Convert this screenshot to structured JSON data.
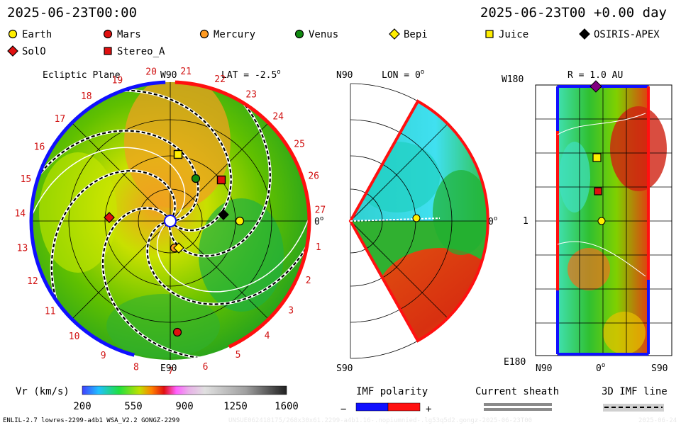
{
  "header": {
    "datetime_left": "2025-06-23T00:00",
    "datetime_right": "2025-06-23T00 +0.00 day"
  },
  "legend": [
    {
      "name": "Earth",
      "shape": "circle",
      "color": "#ffee00"
    },
    {
      "name": "Mars",
      "shape": "circle",
      "color": "#e01010"
    },
    {
      "name": "Mercury",
      "shape": "circle",
      "color": "#ff9a20"
    },
    {
      "name": "Venus",
      "shape": "circle",
      "color": "#108a10"
    },
    {
      "name": "Bepi",
      "shape": "diamond",
      "color": "#ffee00"
    },
    {
      "name": "Juice",
      "shape": "square",
      "color": "#ffee00"
    },
    {
      "name": "OSIRIS-APEX",
      "shape": "diamond",
      "color": "#000000"
    },
    {
      "name": "SolO",
      "shape": "diamond",
      "color": "#e01010"
    },
    {
      "name": "Stereo_A",
      "shape": "square",
      "color": "#e01010"
    }
  ],
  "ecliptic": {
    "title": "Ecliptic Plane",
    "top_label": "W90",
    "lat_label": "LAT = -2.5",
    "bottom_label": "E90",
    "right_label": "0",
    "carrington_numbers": [
      "1",
      "2",
      "3",
      "4",
      "5",
      "6",
      "7",
      "8",
      "9",
      "10",
      "11",
      "12",
      "13",
      "14",
      "15",
      "16",
      "17",
      "18",
      "19",
      "20",
      "21",
      "22",
      "23",
      "24",
      "25",
      "26",
      "27"
    ]
  },
  "meridional": {
    "top_label": "N90",
    "lon_label": "LON = 0",
    "bottom_label": "S90",
    "right_label": "0"
  },
  "r_map": {
    "top_left_label": "W180",
    "r_label": "R = 1.0 AU",
    "mid_label": "1",
    "bottom_left_label": "E180",
    "x_labels": [
      "N90",
      "0",
      "S90"
    ]
  },
  "colorbar": {
    "title": "Vr (km/s)",
    "ticks": [
      "200",
      "550",
      "900",
      "1250",
      "1600"
    ]
  },
  "imf_polarity": {
    "title": "IMF polarity",
    "minus": "−",
    "plus": "+",
    "neg_color": "#1010ff",
    "pos_color": "#ff1010"
  },
  "current_sheath": {
    "title": "Current sheath"
  },
  "imf_line": {
    "title": "3D IMF line"
  },
  "footer": {
    "model_info": "ENLIL-2.7 lowres-2299-a4b1 WSA_V2.2 GONGZ-2299",
    "watermark": "UNSUE062418175/268x30x61.2299-a4b1.16-.nopiumnied-.lg53q5d2.gongz-2025-06-23T00",
    "stamp": "2025-06-24"
  },
  "chart_data": [
    {
      "type": "other",
      "title": "Ecliptic Plane",
      "objects": [
        {
          "name": "Earth",
          "marker": "circle"
        },
        {
          "name": "Mars",
          "marker": "circle"
        },
        {
          "name": "Mercury",
          "marker": "circle"
        },
        {
          "name": "Venus",
          "marker": "circle"
        },
        {
          "name": "Bepi",
          "marker": "diamond"
        },
        {
          "name": "Juice",
          "marker": "square"
        },
        {
          "name": "OSIRIS-APEX",
          "marker": "diamond"
        },
        {
          "name": "SolO",
          "marker": "diamond"
        },
        {
          "name": "Stereo_A",
          "marker": "square"
        }
      ]
    },
    {
      "type": "heatmap",
      "title": "LON = 0",
      "xlabel": "",
      "ylabel": ""
    },
    {
      "type": "heatmap",
      "title": "R = 1.0 AU",
      "x_ticks": [
        "N90",
        "0",
        "S90"
      ],
      "y_ticks": [
        "W180",
        "1",
        "E180"
      ]
    },
    {
      "type": "colorbar",
      "title": "Vr (km/s)",
      "range": [
        200,
        1600
      ],
      "ticks": [
        200,
        550,
        900,
        1250,
        1600
      ]
    }
  ]
}
